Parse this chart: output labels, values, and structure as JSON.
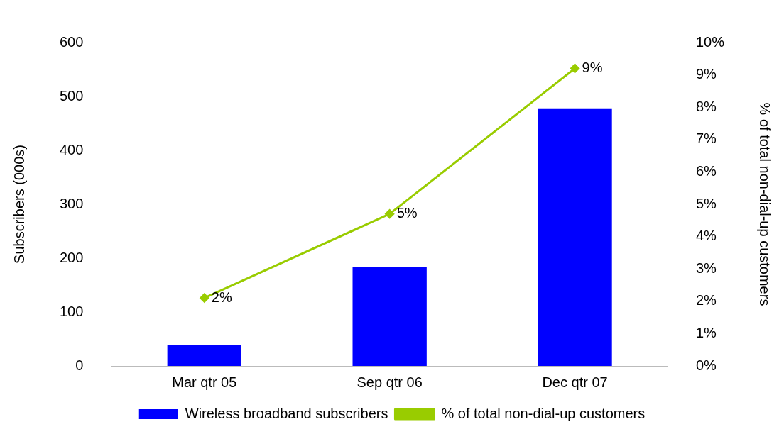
{
  "chart_data": {
    "type": "bar",
    "categories": [
      "Mar qtr 05",
      "Sep qtr 06",
      "Dec qtr 07"
    ],
    "series": [
      {
        "name": "Wireless broadband subscribers",
        "color": "#0000ff",
        "values": [
          39,
          184,
          478
        ]
      },
      {
        "name": "% of total non-dial-up customers",
        "type": "line",
        "axis": "y2",
        "color": "#99cc00",
        "values": [
          2.1,
          4.7,
          9.2
        ],
        "value_labels": [
          "2%",
          "5%",
          "9%"
        ],
        "marker": "diamond"
      }
    ],
    "ylabel": "Subscribers (000s)",
    "y2label": "% of total non-dial-up customers",
    "ylim": [
      0,
      600
    ],
    "yticks": [
      0,
      100,
      200,
      300,
      400,
      500,
      600
    ],
    "y2lim": [
      0,
      10
    ],
    "y2ticks": [
      {
        "value": 0,
        "label": "0%"
      },
      {
        "value": 1,
        "label": "1%"
      },
      {
        "value": 2,
        "label": "2%"
      },
      {
        "value": 3,
        "label": "3%"
      },
      {
        "value": 4,
        "label": "4%"
      },
      {
        "value": 5,
        "label": "5%"
      },
      {
        "value": 6,
        "label": "6%"
      },
      {
        "value": 7,
        "label": "7%"
      },
      {
        "value": 8,
        "label": "8%"
      },
      {
        "value": 9,
        "label": "9%"
      },
      {
        "value": 10,
        "label": "10%"
      }
    ],
    "grid": false,
    "legend": "bottom"
  }
}
